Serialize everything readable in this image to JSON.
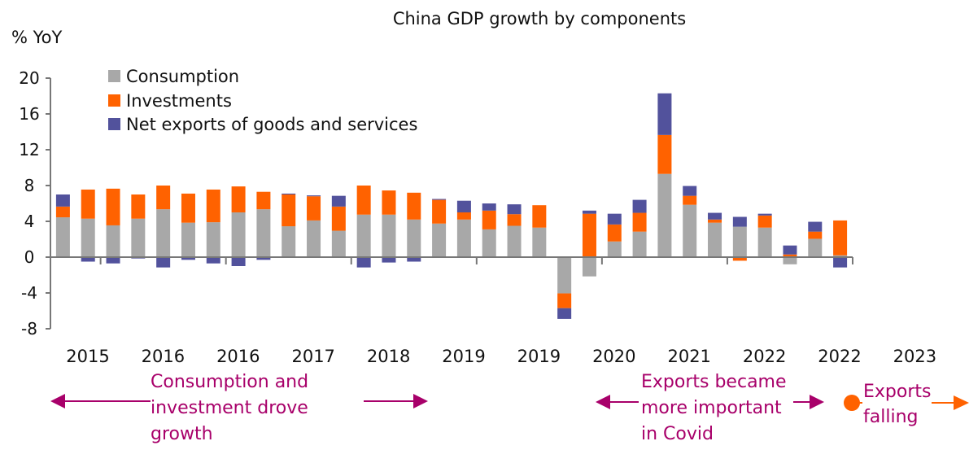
{
  "chart_data": {
    "type": "bar",
    "stacked": true,
    "title": "China GDP growth by components",
    "ylabel": "% YoY",
    "ylim": [
      -8,
      20
    ],
    "yticks": [
      -8,
      -4,
      0,
      4,
      8,
      12,
      16,
      20
    ],
    "grid": false,
    "legend_position": "top-left",
    "xtick_labels": [
      "2015",
      "2016",
      "2016",
      "2017",
      "2018",
      "2019",
      "2019",
      "2020",
      "2021",
      "2022",
      "2022",
      "2023"
    ],
    "series": [
      {
        "name": "Consumption",
        "color": "#a8a8a8",
        "values": [
          4.45,
          4.3,
          3.55,
          4.3,
          5.35,
          3.85,
          3.9,
          5.0,
          5.35,
          3.45,
          4.1,
          2.95,
          4.75,
          4.75,
          4.2,
          3.75,
          4.2,
          3.1,
          3.5,
          3.3,
          -4.05,
          -2.15,
          1.75,
          2.85,
          9.3,
          5.85,
          3.85,
          3.4,
          3.3,
          -0.8,
          2.05,
          0.2
        ]
      },
      {
        "name": "Investments",
        "color": "#ff6200",
        "values": [
          1.2,
          3.25,
          4.1,
          2.7,
          2.65,
          3.25,
          3.65,
          2.9,
          1.95,
          3.55,
          2.7,
          2.7,
          3.25,
          2.7,
          3.0,
          2.65,
          0.8,
          2.1,
          1.3,
          2.5,
          -1.65,
          4.85,
          1.9,
          2.1,
          4.35,
          1.0,
          0.35,
          -0.4,
          1.35,
          0.3,
          0.8,
          3.9
        ]
      },
      {
        "name": "Net exports of goods and services",
        "color": "#52529c",
        "values": [
          1.35,
          -0.5,
          -0.7,
          -0.15,
          -1.15,
          -0.3,
          -0.7,
          -1.0,
          -0.3,
          0.1,
          0.1,
          1.2,
          -1.15,
          -0.6,
          -0.5,
          0.1,
          1.3,
          0.8,
          1.1,
          0,
          -1.2,
          0.35,
          1.2,
          1.45,
          4.65,
          1.1,
          0.75,
          1.1,
          0.2,
          1.0,
          1.1,
          -1.15
        ]
      }
    ],
    "annotations": [
      {
        "text_lines": [
          "Consumption and",
          "investment drove",
          "growth"
        ],
        "color": "#a8006a"
      },
      {
        "text_lines": [
          "Exports became",
          "more important",
          "in Covid"
        ],
        "color": "#a8006a"
      },
      {
        "text_lines": [
          "Exports",
          "falling"
        ],
        "color": "#a8006a",
        "arrow_color": "#ff6200"
      }
    ]
  }
}
